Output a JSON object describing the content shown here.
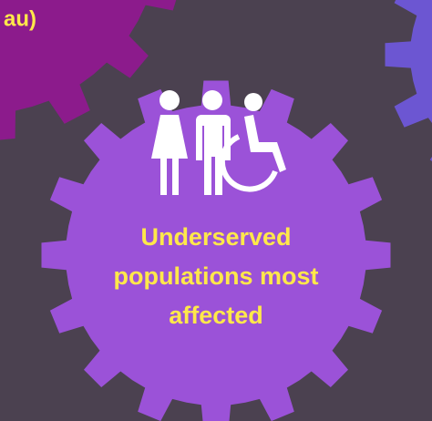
{
  "left_gear": {
    "label": "au)"
  },
  "center_gear": {
    "lines": [
      "Underserved",
      "populations most",
      "affected"
    ]
  }
}
